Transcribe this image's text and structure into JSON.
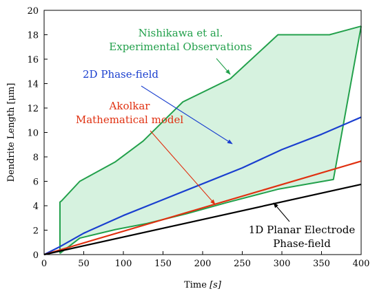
{
  "chart_data": {
    "type": "line",
    "xlabel_text": "Time ",
    "xlabel_unit": "[s]",
    "ylabel": "Dendrite Length [μm]",
    "xlim": [
      0,
      400
    ],
    "ylim": [
      0,
      20
    ],
    "xticks": [
      0,
      50,
      100,
      150,
      200,
      250,
      300,
      350,
      400
    ],
    "yticks": [
      0,
      2,
      4,
      6,
      8,
      10,
      12,
      14,
      16,
      18,
      20
    ],
    "grid": false,
    "experimental_band": {
      "color": "#22a04b",
      "fill": "#d6f2df",
      "upper": {
        "x": [
          20,
          20,
          22,
          45,
          90,
          125,
          175,
          235,
          295,
          360,
          400
        ],
        "y": [
          0.1,
          4.3,
          4.4,
          6.0,
          7.6,
          9.3,
          12.5,
          14.4,
          18.0,
          18.0,
          18.7
        ]
      },
      "lower": {
        "x": [
          20,
          45,
          90,
          130,
          180,
          230,
          295,
          365,
          400
        ],
        "y": [
          0.1,
          1.35,
          2.05,
          2.55,
          3.35,
          4.25,
          5.35,
          6.15,
          18.7
        ]
      }
    },
    "series": [
      {
        "color": "#1a3fcf",
        "x": [
          0,
          20,
          50,
          100,
          150,
          200,
          250,
          300,
          350,
          400
        ],
        "y": [
          0,
          0.65,
          1.75,
          3.2,
          4.5,
          5.8,
          7.1,
          8.6,
          9.85,
          11.25
        ]
      },
      {
        "color": "#e03010",
        "x": [
          0,
          400
        ],
        "y": [
          0,
          7.65
        ]
      },
      {
        "color": "#000000",
        "x": [
          0,
          400
        ],
        "y": [
          0,
          5.75
        ]
      }
    ],
    "annotations": [
      {
        "lines": [
          "Nishikawa et al.",
          "Experimental Observations"
        ],
        "color": "#22a04b"
      },
      {
        "lines": [
          "2D Phase-field"
        ],
        "color": "#1a3fcf"
      },
      {
        "lines": [
          "Akolkar",
          "Mathematical model"
        ],
        "color": "#e03010"
      },
      {
        "lines": [
          "1D Planar Electrode",
          "Phase-field"
        ],
        "color": "#000000"
      }
    ]
  }
}
